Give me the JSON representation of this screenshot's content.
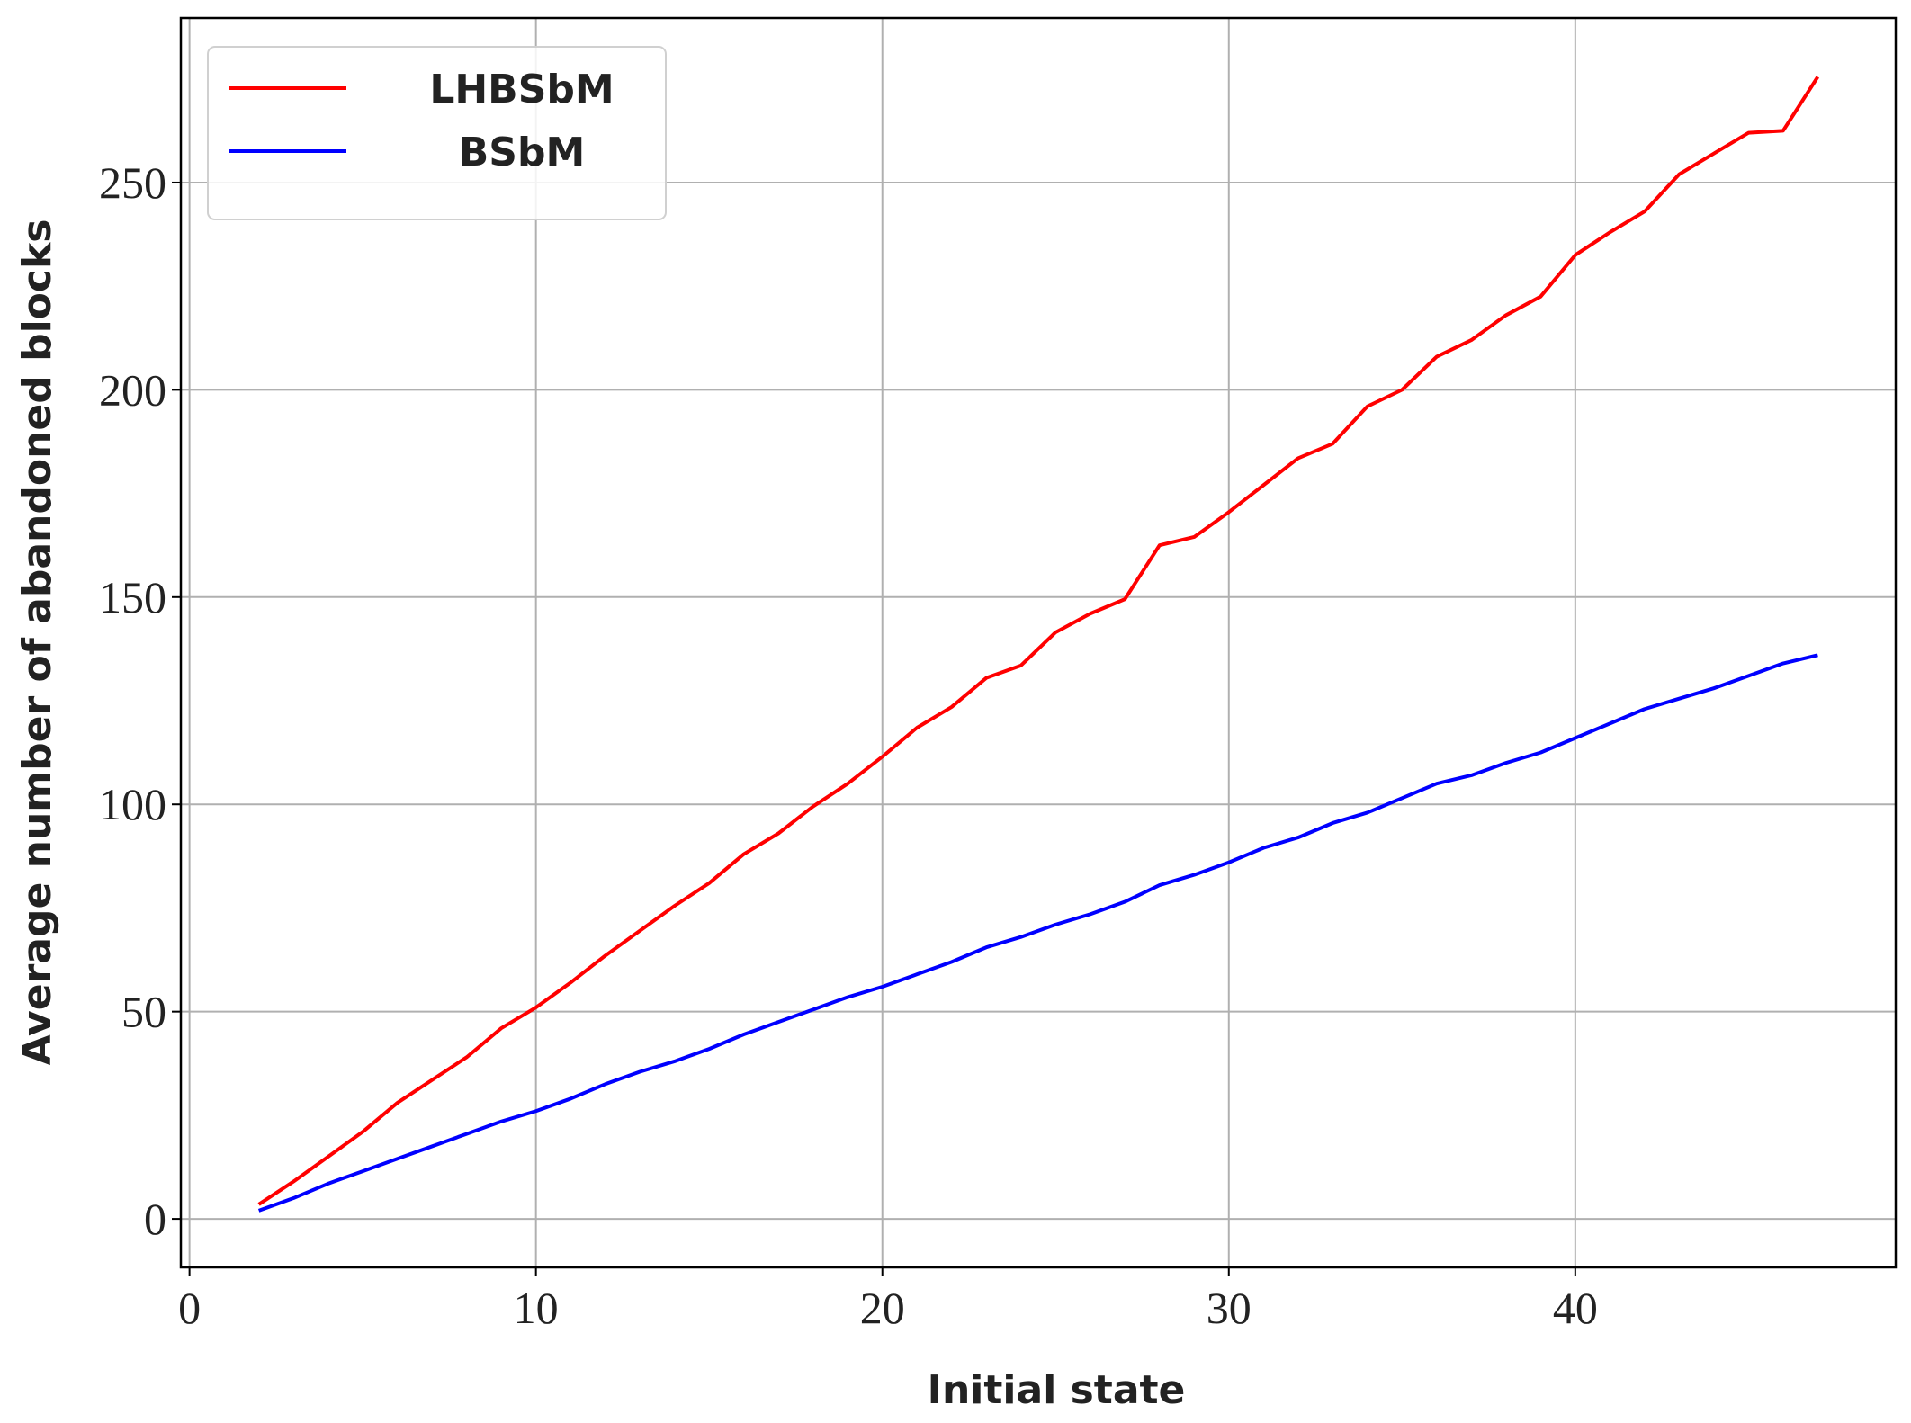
{
  "chart_data": {
    "type": "line",
    "x_label": "Initial state",
    "y_label": "Average number of abandoned blocks",
    "x": [
      2,
      3,
      4,
      5,
      6,
      7,
      8,
      9,
      10,
      11,
      12,
      13,
      14,
      15,
      16,
      17,
      18,
      19,
      20,
      21,
      22,
      23,
      24,
      25,
      26,
      27,
      28,
      29,
      30,
      31,
      32,
      33,
      34,
      35,
      36,
      37,
      38,
      39,
      40,
      41,
      42,
      43,
      44,
      45,
      46,
      47
    ],
    "series": [
      {
        "name": "LHBSbM",
        "color": "#ff0000",
        "values": [
          3.5,
          9,
          15,
          21,
          28,
          33.5,
          39,
          46,
          51,
          57,
          63.5,
          69.5,
          75.5,
          81,
          88,
          93,
          99.5,
          105,
          111.5,
          118.5,
          123.5,
          130.5,
          133.5,
          141.5,
          146,
          149.5,
          162.5,
          164.5,
          170.5,
          177,
          183.5,
          187,
          196,
          200,
          208,
          212,
          218,
          222.5,
          232.5,
          238,
          243,
          252,
          257,
          262,
          262.5,
          275.5
        ]
      },
      {
        "name": "BSbM",
        "color": "#0000ff",
        "values": [
          2,
          5,
          8.5,
          11.5,
          14.5,
          17.5,
          20.5,
          23.5,
          26,
          29,
          32.5,
          35.5,
          38,
          41,
          44.5,
          47.5,
          50.5,
          53.5,
          56,
          59,
          62,
          65.5,
          68,
          71,
          73.5,
          76.5,
          80.5,
          83,
          86,
          89.5,
          92,
          95.5,
          98,
          101.5,
          105,
          107,
          110,
          112.5,
          116,
          119.5,
          123,
          125.5,
          128,
          131,
          134,
          136
        ]
      }
    ],
    "xlim": [
      -0.25,
      49.25
    ],
    "xticks": [
      0,
      10,
      20,
      30,
      40
    ],
    "ylim": [
      -11.7,
      289.7
    ],
    "yticks": [
      0,
      50,
      100,
      150,
      200,
      250
    ],
    "grid": true,
    "legend": "upper left"
  }
}
